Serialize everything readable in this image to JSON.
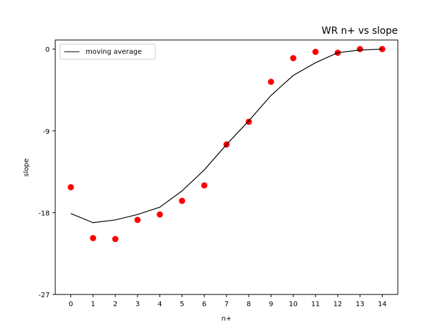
{
  "chart_data": {
    "type": "scatter",
    "title": "WR n+ vs slope",
    "xlabel": "n+",
    "ylabel": "slope",
    "x": [
      0,
      1,
      2,
      3,
      4,
      5,
      6,
      7,
      8,
      9,
      10,
      11,
      12,
      13,
      14
    ],
    "xticks": [
      "0",
      "1",
      "2",
      "3",
      "4",
      "5",
      "6",
      "7",
      "8",
      "9",
      "10",
      "11",
      "12",
      "13",
      "14"
    ],
    "yticks": [
      0,
      -9,
      -18,
      -27
    ],
    "ytick_labels": [
      "0",
      "-9",
      "-18",
      "-27"
    ],
    "xlim": [
      -0.7,
      14.7
    ],
    "ylim": [
      -27,
      1
    ],
    "grid": false,
    "legend_position": "top-left",
    "series": [
      {
        "name": "",
        "kind": "scatter",
        "color": "#ff0000",
        "values": [
          -15.2,
          -20.8,
          -20.9,
          -18.8,
          -18.2,
          -16.7,
          -15.0,
          -10.5,
          -8.0,
          -3.6,
          -1.0,
          -0.3,
          -0.4,
          0.0,
          0.0
        ]
      },
      {
        "name": "moving average",
        "kind": "line",
        "color": "#000000",
        "values": [
          -18.1,
          -19.1,
          -18.8,
          -18.2,
          -17.4,
          -15.6,
          -13.3,
          -10.5,
          -7.9,
          -5.1,
          -2.9,
          -1.5,
          -0.4,
          -0.1,
          0.0
        ]
      }
    ]
  }
}
